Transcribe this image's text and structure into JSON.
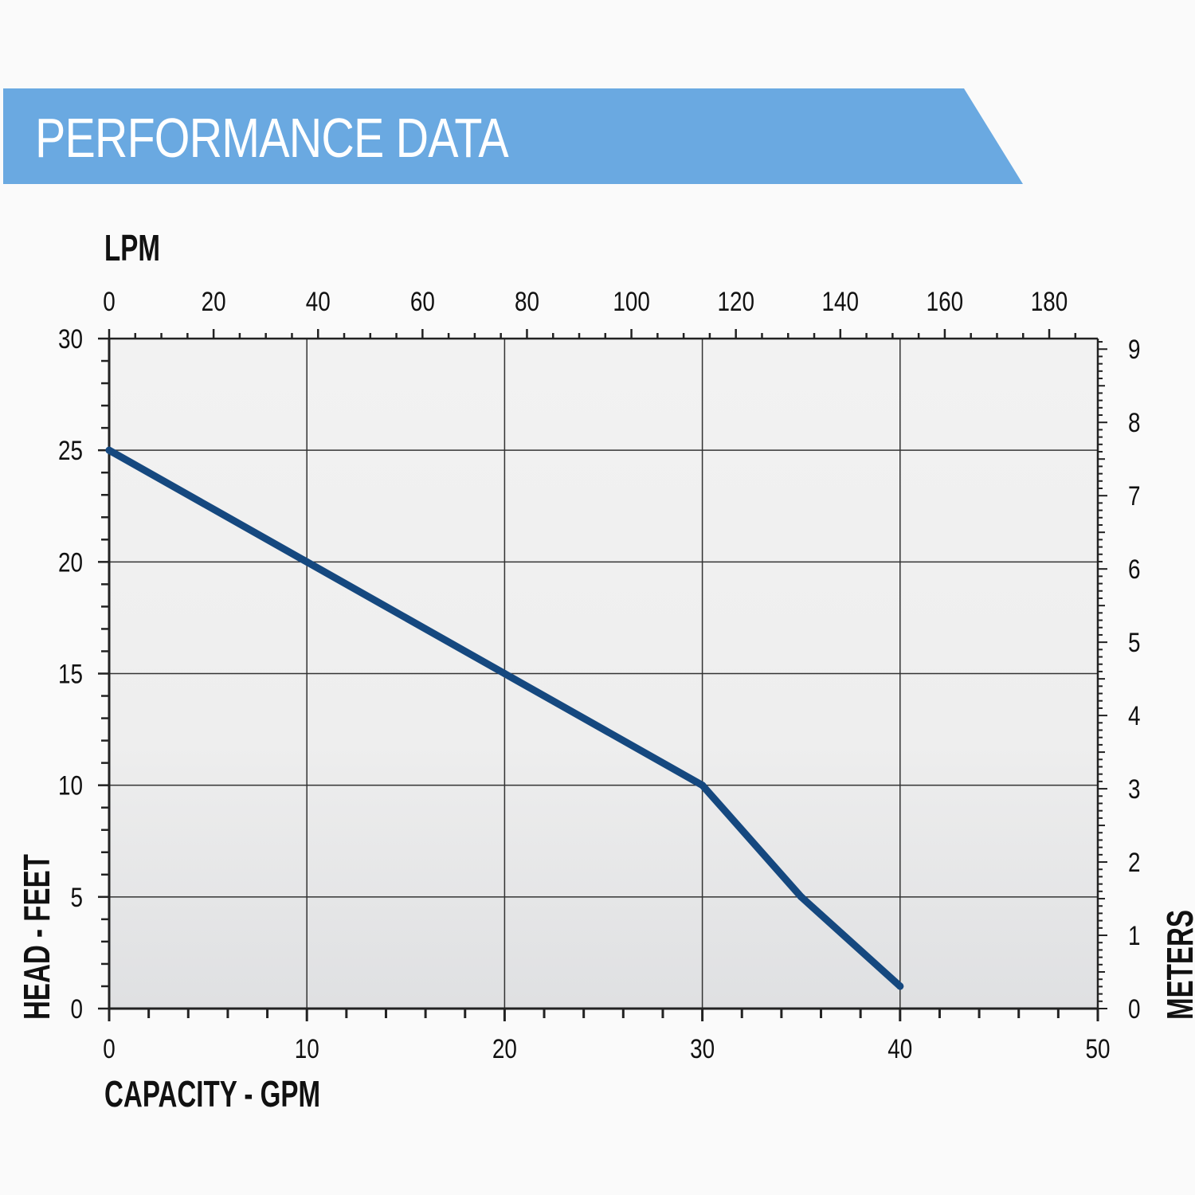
{
  "header": {
    "title": "PERFORMANCE DATA",
    "banner_color": "#6aa9e1"
  },
  "chart_data": {
    "type": "line",
    "title": "PERFORMANCE DATA",
    "xlabel": "CAPACITY - GPM",
    "x2label": "LPM",
    "ylabel": "HEAD - FEET",
    "y2label": "METERS",
    "xlim": [
      0,
      50
    ],
    "ylim": [
      0,
      30
    ],
    "x2lim": [
      0,
      189.3
    ],
    "y2lim": [
      0,
      9.144
    ],
    "x_ticks": [
      "0",
      "10",
      "20",
      "30",
      "40",
      "50"
    ],
    "y_ticks": [
      "0",
      "5",
      "10",
      "15",
      "20",
      "25",
      "30"
    ],
    "x2_ticks": [
      "0",
      "20",
      "40",
      "60",
      "80",
      "100",
      "120",
      "140",
      "160",
      "180"
    ],
    "y2_ticks": [
      "0",
      "1",
      "2",
      "3",
      "4",
      "5",
      "6",
      "7",
      "8",
      "9"
    ],
    "grid": true,
    "series": [
      {
        "color": "#15487f",
        "x": [
          0,
          10,
          20,
          30,
          35,
          40
        ],
        "y": [
          25,
          20,
          15,
          10,
          5,
          1
        ]
      }
    ]
  }
}
